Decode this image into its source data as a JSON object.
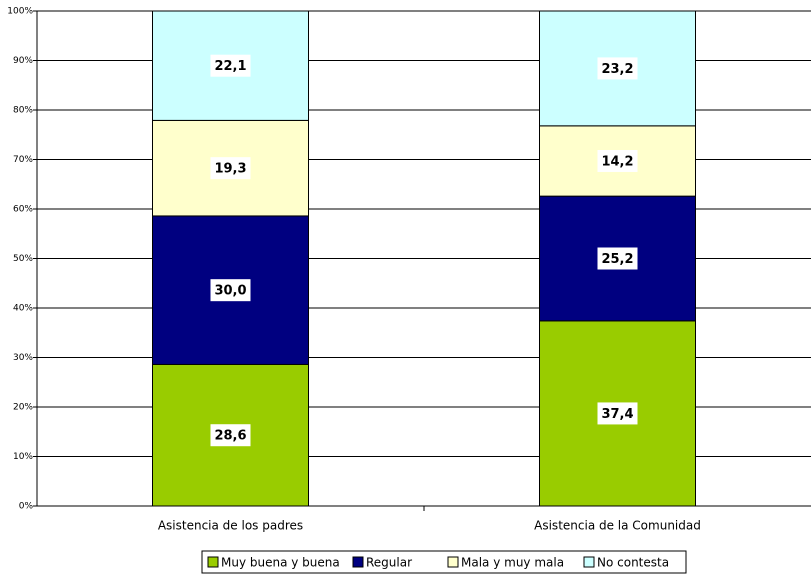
{
  "chart_data": {
    "type": "stacked-bar",
    "categories": [
      "Asistencia de los padres",
      "Asistencia de la Comunidad"
    ],
    "series": [
      {
        "name": "Muy buena y buena",
        "color": "#99cc00",
        "values": [
          28.6,
          37.4
        ],
        "value_labels": [
          "28,6",
          "37,4"
        ]
      },
      {
        "name": "Regular",
        "color": "#000080",
        "values": [
          30.0,
          25.2
        ],
        "value_labels": [
          "30,0",
          "25,2"
        ]
      },
      {
        "name": "Mala y muy mala",
        "color": "#ffffcc",
        "values": [
          19.3,
          14.2
        ],
        "value_labels": [
          "19,3",
          "14,2"
        ]
      },
      {
        "name": "No contesta",
        "color": "#ccffff",
        "values": [
          22.1,
          23.2
        ],
        "value_labels": [
          "22,1",
          "23,2"
        ]
      }
    ],
    "ylim": [
      0,
      100
    ],
    "yticks": [
      {
        "value": 0,
        "label": "0%"
      },
      {
        "value": 10,
        "label": "10%"
      },
      {
        "value": 20,
        "label": "20%"
      },
      {
        "value": 30,
        "label": "30%"
      },
      {
        "value": 40,
        "label": "40%"
      },
      {
        "value": 50,
        "label": "50%"
      },
      {
        "value": 60,
        "label": "60%"
      },
      {
        "value": 70,
        "label": "70%"
      },
      {
        "value": 80,
        "label": "80%"
      },
      {
        "value": 90,
        "label": "90%"
      },
      {
        "value": 100,
        "label": "100%"
      }
    ],
    "grid": true
  }
}
